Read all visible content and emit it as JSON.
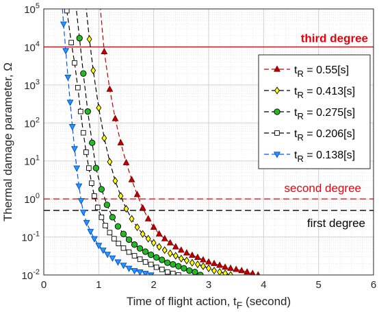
{
  "chart_data": {
    "type": "line",
    "title": "",
    "xlabel": "Time of flight action, t",
    "xlabel_sub": "F",
    "xlabel_suffix": " (second)",
    "ylabel": "Thermal damage parameter, Ω",
    "xlim": [
      0,
      6
    ],
    "ylim": [
      0.01,
      100000
    ],
    "yscale": "log",
    "grid": true,
    "legend_position": "right",
    "x_ticks": [
      "0",
      "1",
      "2",
      "3",
      "4",
      "5",
      "6"
    ],
    "y_ticks": [
      {
        "base": "10",
        "exp": "-2"
      },
      {
        "base": "10",
        "exp": "-1"
      },
      {
        "base": "10",
        "exp": "0"
      },
      {
        "base": "10",
        "exp": "1"
      },
      {
        "base": "10",
        "exp": "2"
      },
      {
        "base": "10",
        "exp": "3"
      },
      {
        "base": "10",
        "exp": "4"
      },
      {
        "base": "10",
        "exp": "5"
      }
    ],
    "thresholds": [
      {
        "label": "third degree",
        "value": 10000,
        "color": "#e8000b",
        "style": "solid",
        "bold": true
      },
      {
        "label": "second degree",
        "value": 1,
        "color": "#e8000b",
        "style": "dashed",
        "bold": false
      },
      {
        "label": "first degree",
        "value": 0.5,
        "color": "#000000",
        "style": "dashed",
        "bold": false
      }
    ],
    "series": [
      {
        "name": "0.55[s]",
        "color": "#c00000",
        "marker": "triangle-up",
        "fill": "#c00000",
        "x": [
          1.0,
          1.1,
          1.2,
          1.3,
          1.4,
          1.5,
          1.6,
          1.7,
          1.8,
          1.9,
          2.0,
          2.1,
          2.2,
          2.3,
          2.4,
          2.5,
          2.6,
          2.7,
          2.8,
          2.9,
          3.0,
          3.1,
          3.2,
          3.3,
          3.4,
          3.5,
          3.6,
          3.7,
          3.8,
          3.9
        ],
        "y": [
          310000,
          7500,
          770,
          130,
          30,
          9,
          3.2,
          1.3,
          0.58,
          0.3,
          0.18,
          0.12,
          0.09,
          0.07,
          0.055,
          0.045,
          0.038,
          0.033,
          0.029,
          0.025,
          0.022,
          0.02,
          0.018,
          0.016,
          0.015,
          0.014,
          0.013,
          0.012,
          0.011,
          0.01
        ]
      },
      {
        "name": "0.413[s]",
        "color": "#000000",
        "marker": "diamond",
        "fill": "#ffff00",
        "x": [
          0.75,
          0.83,
          0.9,
          1.0,
          1.1,
          1.2,
          1.3,
          1.4,
          1.5,
          1.6,
          1.7,
          1.8,
          1.9,
          2.0,
          2.1,
          2.2,
          2.3,
          2.4,
          2.5,
          2.6,
          2.7,
          2.8,
          2.9,
          3.0,
          3.1,
          3.2,
          3.3,
          3.4
        ],
        "y": [
          200000,
          16000,
          2400,
          250,
          40,
          9.5,
          3.0,
          1.2,
          0.55,
          0.3,
          0.18,
          0.12,
          0.09,
          0.07,
          0.055,
          0.045,
          0.037,
          0.032,
          0.027,
          0.024,
          0.021,
          0.019,
          0.017,
          0.015,
          0.013,
          0.012,
          0.011,
          0.01
        ]
      },
      {
        "name": "0.275[s]",
        "color": "#000000",
        "marker": "circle",
        "fill": "#22bb22",
        "x": [
          0.58,
          0.65,
          0.72,
          0.8,
          0.88,
          0.95,
          1.05,
          1.15,
          1.25,
          1.35,
          1.45,
          1.55,
          1.65,
          1.75,
          1.85,
          1.95,
          2.05,
          2.15,
          2.25,
          2.35,
          2.45,
          2.55,
          2.65,
          2.75,
          2.85
        ],
        "y": [
          140000,
          17000,
          2000,
          200,
          30,
          6.5,
          1.8,
          0.7,
          0.33,
          0.19,
          0.12,
          0.085,
          0.063,
          0.05,
          0.041,
          0.034,
          0.029,
          0.025,
          0.021,
          0.019,
          0.017,
          0.015,
          0.013,
          0.012,
          0.01
        ]
      },
      {
        "name": "0.206[s]",
        "color": "#000000",
        "marker": "square",
        "fill": "#ffffff",
        "x": [
          0.42,
          0.5,
          0.56,
          0.62,
          0.67,
          0.72,
          0.77,
          0.82,
          0.87,
          0.92,
          0.98,
          1.05,
          1.12,
          1.2,
          1.28,
          1.36,
          1.45,
          1.55,
          1.65,
          1.75,
          1.85,
          1.95,
          2.05,
          2.15,
          2.25,
          2.35,
          2.45
        ],
        "y": [
          90000,
          13000,
          3800,
          850,
          200,
          55,
          17,
          6.5,
          2.6,
          1.2,
          0.6,
          0.33,
          0.2,
          0.13,
          0.09,
          0.067,
          0.051,
          0.04,
          0.032,
          0.026,
          0.022,
          0.019,
          0.016,
          0.014,
          0.012,
          0.011,
          0.01
        ]
      },
      {
        "name": "0.138[s]",
        "color": "#0055ff",
        "marker": "triangle-down",
        "fill": "#2299ff",
        "x": [
          0.32,
          0.36,
          0.4,
          0.44,
          0.48,
          0.52,
          0.56,
          0.6,
          0.64,
          0.68,
          0.72,
          0.78,
          0.85,
          0.92,
          1.0,
          1.08,
          1.16,
          1.25,
          1.35,
          1.45,
          1.55,
          1.65,
          1.75,
          1.85,
          1.95
        ],
        "y": [
          250000,
          40000,
          8000,
          1600,
          350,
          80,
          21,
          6.5,
          2.2,
          0.9,
          0.45,
          0.24,
          0.14,
          0.09,
          0.06,
          0.045,
          0.035,
          0.028,
          0.022,
          0.018,
          0.015,
          0.013,
          0.012,
          0.011,
          0.01
        ]
      }
    ],
    "legend_prefix": "t",
    "legend_sub": "R",
    "legend_eq": " = "
  }
}
